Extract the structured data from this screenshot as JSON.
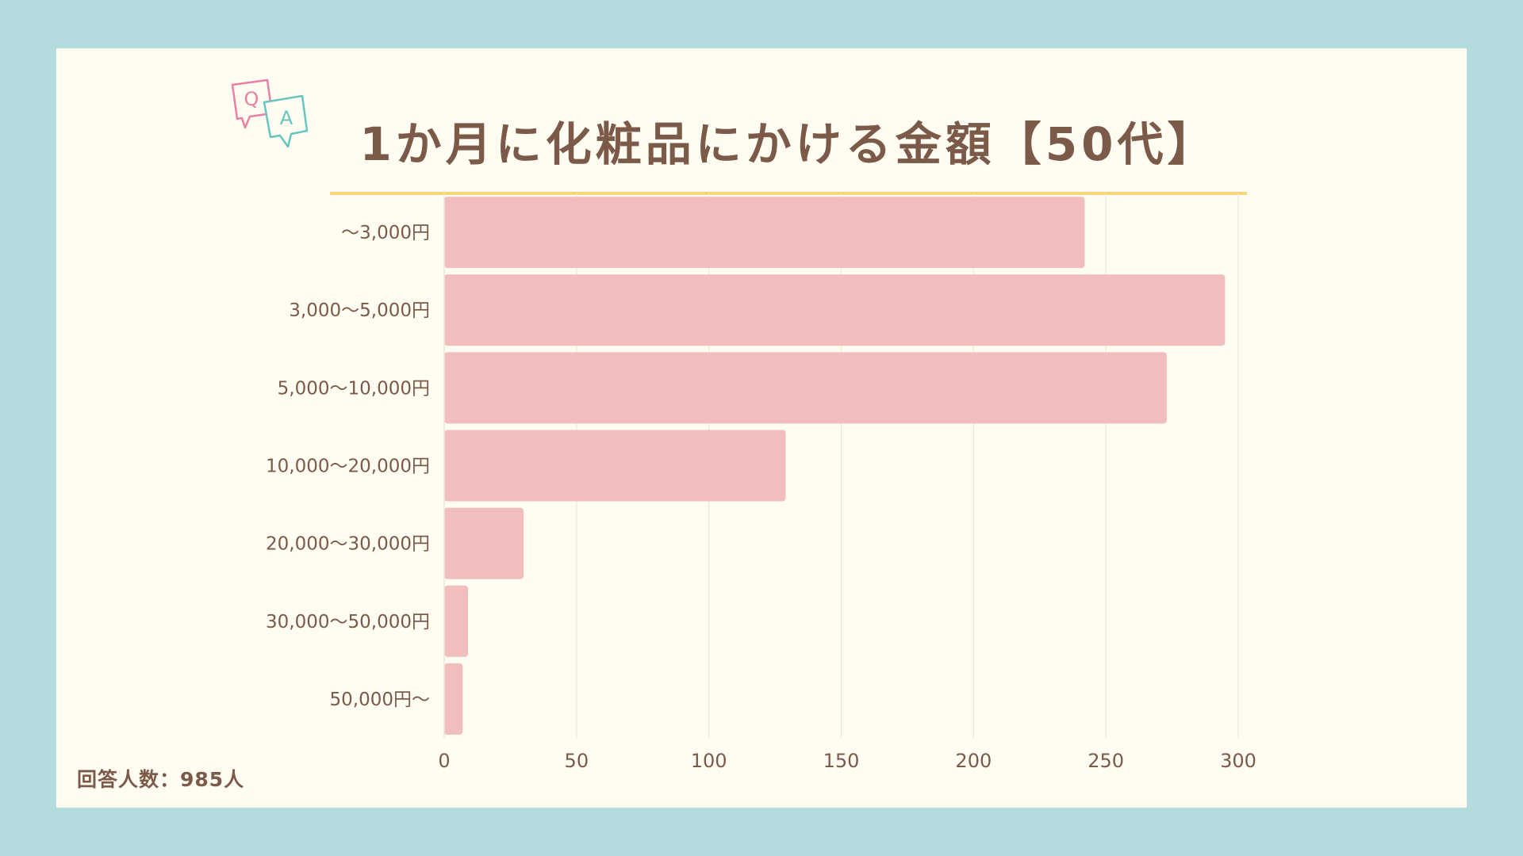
{
  "title": "1か月に化粧品にかける金額【50代】",
  "footer": "回答人数：985人",
  "colors": {
    "background": "#b4dbdd",
    "card": "#fffcf2",
    "bar": "#f0bfbd",
    "grid": "#ece8d4",
    "text": "#7b5a4a",
    "title_underline": "#f6d67b",
    "q_bubble": "#e97fa3",
    "a_bubble": "#66c5c0"
  },
  "icon": {
    "name": "qa-speech-bubbles-icon",
    "q_letter": "Q",
    "a_letter": "A"
  },
  "chart_data": {
    "type": "bar",
    "orientation": "horizontal",
    "categories": [
      "〜3,000円",
      "3,000〜5,000円",
      "5,000〜10,000円",
      "10,000〜20,000円",
      "20,000〜30,000円",
      "30,000〜50,000円",
      "50,000円〜"
    ],
    "values": [
      242,
      295,
      273,
      129,
      30,
      9,
      7
    ],
    "xlim": [
      0,
      300
    ],
    "xticks": [
      "0",
      "50",
      "100",
      "150",
      "200",
      "250",
      "300"
    ],
    "grid": true
  }
}
